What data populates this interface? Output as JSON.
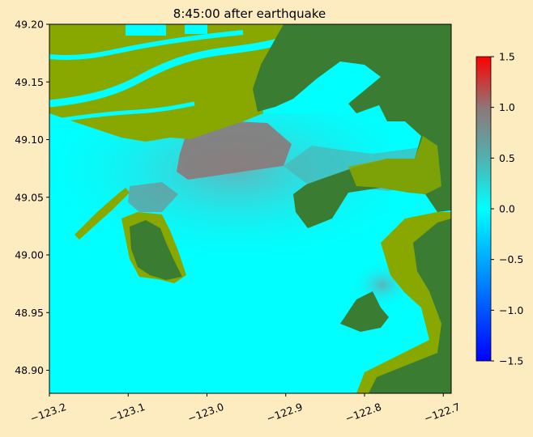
{
  "colors": {
    "figure_background": "#feecc1",
    "water_still": "#00ffff",
    "water_rise_mid": "#4fb3b3",
    "water_rise_high": "#8d7878",
    "land_lowland": "#88a800",
    "land_upland": "#3a7d32",
    "colormap_min": "#0000ff",
    "colormap_mid": "#00ffff",
    "colormap_max": "#ff0000"
  },
  "chart_data": {
    "type": "heatmap",
    "title": "8:45:00 after earthquake",
    "xlabel": "",
    "ylabel": "",
    "xlim": [
      -123.2,
      -122.69
    ],
    "ylim": [
      48.88,
      49.2
    ],
    "x_ticks": [
      {
        "value": -123.2,
        "label": "−123.2"
      },
      {
        "value": -123.1,
        "label": "−123.1"
      },
      {
        "value": -123.0,
        "label": "−123.0"
      },
      {
        "value": -122.9,
        "label": "−122.9"
      },
      {
        "value": -122.8,
        "label": "−122.8"
      },
      {
        "value": -122.7,
        "label": "−122.7"
      }
    ],
    "y_ticks": [
      {
        "value": 48.9,
        "label": "48.90"
      },
      {
        "value": 48.95,
        "label": "48.95"
      },
      {
        "value": 49.0,
        "label": "49.00"
      },
      {
        "value": 49.05,
        "label": "49.05"
      },
      {
        "value": 49.1,
        "label": "49.10"
      },
      {
        "value": 49.15,
        "label": "49.15"
      },
      {
        "value": 49.2,
        "label": "49.20"
      }
    ],
    "colorbar": {
      "min": -1.5,
      "max": 1.5,
      "ticks": [
        {
          "value": 1.5,
          "label": "1.5"
        },
        {
          "value": 1.0,
          "label": "1.0"
        },
        {
          "value": 0.5,
          "label": "0.5"
        },
        {
          "value": 0.0,
          "label": "0.0"
        },
        {
          "value": -0.5,
          "label": "−0.5"
        },
        {
          "value": -1.0,
          "label": "−1.0"
        },
        {
          "value": -1.5,
          "label": "−1.5"
        }
      ]
    },
    "grid": false
  }
}
